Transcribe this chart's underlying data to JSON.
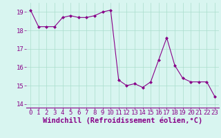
{
  "x": [
    0,
    1,
    2,
    3,
    4,
    5,
    6,
    7,
    8,
    9,
    10,
    11,
    12,
    13,
    14,
    15,
    16,
    17,
    18,
    19,
    20,
    21,
    22,
    23
  ],
  "y": [
    19.1,
    18.2,
    18.2,
    18.2,
    18.7,
    18.8,
    18.7,
    18.7,
    18.8,
    19.0,
    19.1,
    15.3,
    15.0,
    15.1,
    14.9,
    15.2,
    16.4,
    17.6,
    16.1,
    15.4,
    15.2,
    15.2,
    15.2,
    14.4
  ],
  "line_color": "#880088",
  "marker": "D",
  "marker_size": 2,
  "bg_color": "#d8f5f0",
  "grid_color": "#aaddcc",
  "xlabel": "Windchill (Refroidissement éolien,°C)",
  "xlabel_color": "#880088",
  "tick_color": "#880088",
  "ylim": [
    13.8,
    19.5
  ],
  "yticks": [
    14,
    15,
    16,
    17,
    18,
    19
  ],
  "xlim": [
    -0.5,
    23.5
  ],
  "xticks": [
    0,
    1,
    2,
    3,
    4,
    5,
    6,
    7,
    8,
    9,
    10,
    11,
    12,
    13,
    14,
    15,
    16,
    17,
    18,
    19,
    20,
    21,
    22,
    23
  ],
  "xlabel_fontsize": 7.5,
  "tick_fontsize": 6.5
}
